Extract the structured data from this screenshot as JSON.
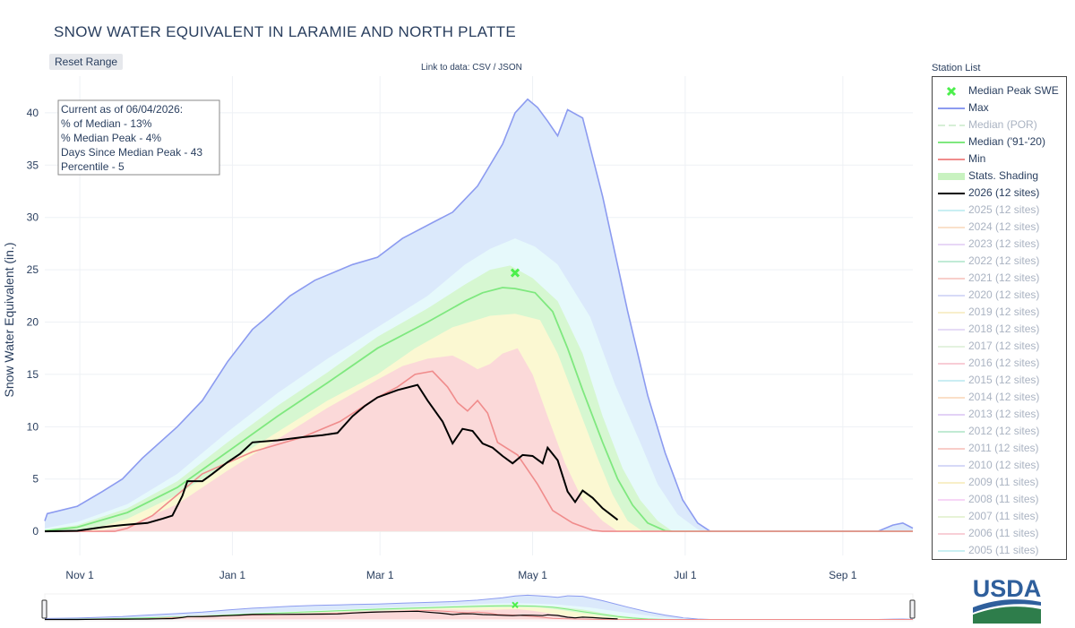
{
  "page": {
    "title": "SNOW WATER EQUIVALENT IN LARAMIE AND NORTH PLATTE",
    "reset_label": "Reset Range",
    "data_link_prefix": "Link to data: ",
    "data_link_csv": "CSV",
    "data_link_sep": " / ",
    "data_link_json": "JSON",
    "legend_title": "Station List",
    "logo_text": "USDA"
  },
  "info_box": {
    "line1": "Current as of 06/04/2026:",
    "line2": "% of Median - 13%",
    "line3": "% Median Peak - 4%",
    "line4": "Days Since Median Peak - 43",
    "line5": "Percentile - 5"
  },
  "legend": [
    {
      "label": "Median Peak SWE",
      "symbol": "x",
      "color": "#4cef4c",
      "active": true
    },
    {
      "label": "Max",
      "symbol": "line",
      "color": "#8c9bf0",
      "active": true
    },
    {
      "label": "Median (POR)",
      "symbol": "dash",
      "color": "#b6e3b6",
      "active": false
    },
    {
      "label": "Median ('91-'20)",
      "symbol": "line",
      "color": "#7fe87f",
      "active": true
    },
    {
      "label": "Min",
      "symbol": "line",
      "color": "#f08c8c",
      "active": true
    },
    {
      "label": "Stats. Shading",
      "symbol": "band",
      "color": "#c8f2c0",
      "active": true
    },
    {
      "label": "2026 (12 sites)",
      "symbol": "line",
      "color": "#000000",
      "active": true
    },
    {
      "label": "2025 (12 sites)",
      "symbol": "line",
      "color": "#9ee3ea",
      "active": false
    },
    {
      "label": "2024 (12 sites)",
      "symbol": "line",
      "color": "#f6c9a2",
      "active": false
    },
    {
      "label": "2023 (12 sites)",
      "symbol": "line",
      "color": "#d7b8f0",
      "active": false
    },
    {
      "label": "2022 (12 sites)",
      "symbol": "line",
      "color": "#8fdbb5",
      "active": false
    },
    {
      "label": "2021 (12 sites)",
      "symbol": "line",
      "color": "#f4a9a0",
      "active": false
    },
    {
      "label": "2020 (12 sites)",
      "symbol": "line",
      "color": "#b7bdf2",
      "active": false
    },
    {
      "label": "2019 (12 sites)",
      "symbol": "line",
      "color": "#f4e3a4",
      "active": false
    },
    {
      "label": "2018 (12 sites)",
      "symbol": "line",
      "color": "#d2c1f0",
      "active": false
    },
    {
      "label": "2017 (12 sites)",
      "symbol": "line",
      "color": "#cfe9c5",
      "active": false
    },
    {
      "label": "2016 (12 sites)",
      "symbol": "line",
      "color": "#f4a5b5",
      "active": false
    },
    {
      "label": "2015 (12 sites)",
      "symbol": "line",
      "color": "#9fdfea",
      "active": false
    },
    {
      "label": "2014 (12 sites)",
      "symbol": "line",
      "color": "#f6c59c",
      "active": false
    },
    {
      "label": "2013 (12 sites)",
      "symbol": "line",
      "color": "#cdaef0",
      "active": false
    },
    {
      "label": "2012 (12 sites)",
      "symbol": "line",
      "color": "#8fdab0",
      "active": false
    },
    {
      "label": "2011 (12 sites)",
      "symbol": "line",
      "color": "#f4a59c",
      "active": false
    },
    {
      "label": "2010 (12 sites)",
      "symbol": "line",
      "color": "#b5bbf2",
      "active": false
    },
    {
      "label": "2009 (11 sites)",
      "symbol": "line",
      "color": "#f3e39c",
      "active": false
    },
    {
      "label": "2008 (11 sites)",
      "symbol": "line",
      "color": "#f2b6ef",
      "active": false
    },
    {
      "label": "2007 (11 sites)",
      "symbol": "line",
      "color": "#d5eab8",
      "active": false
    },
    {
      "label": "2006 (11 sites)",
      "symbol": "line",
      "color": "#f4a9b8",
      "active": false
    },
    {
      "label": "2005 (11 sites)",
      "symbol": "line",
      "color": "#9fe2ea",
      "active": false
    }
  ],
  "chart_data": {
    "type": "area",
    "title": "SNOW WATER EQUIVALENT IN LARAMIE AND NORTH PLATTE",
    "ylabel": "Snow Water Equivalent (in.)",
    "xlabel": "",
    "x_ticks": [
      "Nov 1",
      "Jan 1",
      "Mar 1",
      "May 1",
      "Jul 1",
      "Sep 1"
    ],
    "y_ticks": [
      0,
      5,
      10,
      15,
      20,
      25,
      30,
      35,
      40
    ],
    "x_units": "day of water year (Oct 1 = 0)",
    "x_tick_days": [
      31,
      92,
      151,
      212,
      273,
      336
    ],
    "xlim": [
      17,
      364
    ],
    "ylim": [
      -2.3,
      43.5
    ],
    "grid": true,
    "legend_position": "right",
    "colors": {
      "max_band": "#dbe9fb",
      "max_line": "#8c9bf0",
      "p90_band": "#e6f9fb",
      "p70_band": "#d6f7d1",
      "median_line": "#7fe87f",
      "p30_band": "#fbf8d2",
      "min_band": "#fbd9d9",
      "min_line": "#f08c8c",
      "current_line": "#000000",
      "peak_marker": "#4cef4c"
    },
    "series": [
      {
        "name": "Max",
        "points": [
          [
            17,
            1.0
          ],
          [
            18,
            1.7
          ],
          [
            30,
            2.4
          ],
          [
            40,
            3.8
          ],
          [
            48,
            5.0
          ],
          [
            56,
            7.0
          ],
          [
            70,
            10.0
          ],
          [
            80,
            12.5
          ],
          [
            90,
            16.2
          ],
          [
            100,
            19.3
          ],
          [
            105,
            20.3
          ],
          [
            115,
            22.5
          ],
          [
            125,
            24.0
          ],
          [
            140,
            25.5
          ],
          [
            150,
            26.2
          ],
          [
            160,
            28.0
          ],
          [
            172,
            29.5
          ],
          [
            180,
            30.5
          ],
          [
            190,
            33.0
          ],
          [
            200,
            37.0
          ],
          [
            205,
            40.0
          ],
          [
            210,
            41.3
          ],
          [
            214,
            40.5
          ],
          [
            218,
            39.2
          ],
          [
            222,
            37.8
          ],
          [
            226,
            40.3
          ],
          [
            232,
            39.5
          ],
          [
            240,
            32.0
          ],
          [
            250,
            21.0
          ],
          [
            258,
            13.0
          ],
          [
            265,
            7.5
          ],
          [
            272,
            3.0
          ],
          [
            278,
            0.8
          ],
          [
            283,
            0
          ],
          [
            350,
            0
          ],
          [
            356,
            0.6
          ],
          [
            360,
            0.8
          ],
          [
            364,
            0.3
          ]
        ]
      },
      {
        "name": "Band 90",
        "points": [
          [
            17,
            0.3
          ],
          [
            30,
            0.9
          ],
          [
            50,
            2.6
          ],
          [
            70,
            5.5
          ],
          [
            90,
            9.5
          ],
          [
            110,
            13.2
          ],
          [
            130,
            16.5
          ],
          [
            150,
            19.5
          ],
          [
            170,
            22.5
          ],
          [
            185,
            25.5
          ],
          [
            195,
            27.0
          ],
          [
            205,
            28.0
          ],
          [
            213,
            27.2
          ],
          [
            222,
            25.5
          ],
          [
            235,
            20.5
          ],
          [
            245,
            14.0
          ],
          [
            255,
            8.5
          ],
          [
            262,
            4.5
          ],
          [
            270,
            1.6
          ],
          [
            278,
            0.2
          ],
          [
            280,
            0
          ],
          [
            364,
            0
          ]
        ]
      },
      {
        "name": "Band 70",
        "points": [
          [
            17,
            0.15
          ],
          [
            30,
            0.6
          ],
          [
            50,
            2.2
          ],
          [
            70,
            4.8
          ],
          [
            90,
            8.5
          ],
          [
            110,
            12.0
          ],
          [
            130,
            15.2
          ],
          [
            150,
            18.6
          ],
          [
            170,
            21.3
          ],
          [
            185,
            23.6
          ],
          [
            195,
            25.0
          ],
          [
            203,
            25.4
          ],
          [
            212,
            24.2
          ],
          [
            222,
            22.0
          ],
          [
            232,
            17.0
          ],
          [
            240,
            11.0
          ],
          [
            248,
            6.0
          ],
          [
            255,
            3.0
          ],
          [
            262,
            1.0
          ],
          [
            268,
            0
          ],
          [
            364,
            0
          ]
        ]
      },
      {
        "name": "Median ('91-'20)",
        "points": [
          [
            17,
            0.05
          ],
          [
            30,
            0.4
          ],
          [
            50,
            1.8
          ],
          [
            70,
            4.2
          ],
          [
            90,
            7.6
          ],
          [
            110,
            11.0
          ],
          [
            130,
            14.2
          ],
          [
            150,
            17.5
          ],
          [
            170,
            20.0
          ],
          [
            185,
            22.0
          ],
          [
            192,
            22.8
          ],
          [
            200,
            23.3
          ],
          [
            205,
            23.2
          ],
          [
            213,
            22.8
          ],
          [
            220,
            21.0
          ],
          [
            226,
            17.5
          ],
          [
            232,
            13.5
          ],
          [
            240,
            8.5
          ],
          [
            246,
            5.0
          ],
          [
            252,
            2.5
          ],
          [
            258,
            0.8
          ],
          [
            265,
            0.05
          ],
          [
            268,
            0
          ],
          [
            364,
            0
          ]
        ]
      },
      {
        "name": "Band 30",
        "points": [
          [
            17,
            0
          ],
          [
            30,
            0.1
          ],
          [
            40,
            0.5
          ],
          [
            50,
            1.2
          ],
          [
            70,
            3.5
          ],
          [
            90,
            6.5
          ],
          [
            110,
            9.5
          ],
          [
            130,
            12.5
          ],
          [
            150,
            15.0
          ],
          [
            165,
            17.5
          ],
          [
            180,
            19.5
          ],
          [
            195,
            20.6
          ],
          [
            205,
            20.8
          ],
          [
            215,
            20.2
          ],
          [
            222,
            17.0
          ],
          [
            230,
            12.0
          ],
          [
            238,
            7.0
          ],
          [
            244,
            3.5
          ],
          [
            250,
            1.0
          ],
          [
            256,
            0
          ],
          [
            364,
            0
          ]
        ]
      },
      {
        "name": "Band 10",
        "points": [
          [
            17,
            0
          ],
          [
            40,
            0.1
          ],
          [
            50,
            0.5
          ],
          [
            70,
            2.6
          ],
          [
            90,
            5.8
          ],
          [
            110,
            8.8
          ],
          [
            130,
            11.8
          ],
          [
            150,
            14.5
          ],
          [
            160,
            15.8
          ],
          [
            170,
            16.5
          ],
          [
            180,
            16.8
          ],
          [
            185,
            16.2
          ],
          [
            190,
            15.5
          ],
          [
            195,
            16.0
          ],
          [
            200,
            17.0
          ],
          [
            206,
            17.5
          ],
          [
            212,
            15.0
          ],
          [
            218,
            11.0
          ],
          [
            225,
            6.5
          ],
          [
            232,
            3.0
          ],
          [
            240,
            1.0
          ],
          [
            246,
            0
          ],
          [
            364,
            0
          ]
        ]
      },
      {
        "name": "Min",
        "points": [
          [
            17,
            0
          ],
          [
            45,
            0
          ],
          [
            50,
            0.3
          ],
          [
            60,
            1.5
          ],
          [
            70,
            3.5
          ],
          [
            80,
            5.5
          ],
          [
            100,
            7.6
          ],
          [
            120,
            9.0
          ],
          [
            135,
            10.5
          ],
          [
            150,
            12.8
          ],
          [
            158,
            13.8
          ],
          [
            165,
            15.0
          ],
          [
            172,
            15.3
          ],
          [
            178,
            13.8
          ],
          [
            182,
            12.3
          ],
          [
            186,
            11.5
          ],
          [
            190,
            12.5
          ],
          [
            194,
            11.3
          ],
          [
            198,
            8.5
          ],
          [
            206,
            7.3
          ],
          [
            214,
            4.5
          ],
          [
            220,
            2.0
          ],
          [
            228,
            0.8
          ],
          [
            236,
            0.1
          ],
          [
            240,
            0
          ],
          [
            364,
            0
          ]
        ]
      },
      {
        "name": "2026 (12 sites)",
        "points": [
          [
            17,
            0
          ],
          [
            30,
            0.05
          ],
          [
            40,
            0.4
          ],
          [
            48,
            0.6
          ],
          [
            58,
            0.8
          ],
          [
            64,
            1.2
          ],
          [
            68,
            1.5
          ],
          [
            72,
            3.4
          ],
          [
            74,
            4.8
          ],
          [
            80,
            4.8
          ],
          [
            84,
            5.5
          ],
          [
            90,
            6.6
          ],
          [
            95,
            7.4
          ],
          [
            100,
            8.5
          ],
          [
            110,
            8.7
          ],
          [
            120,
            9.0
          ],
          [
            128,
            9.2
          ],
          [
            134,
            9.4
          ],
          [
            140,
            11.0
          ],
          [
            145,
            12.0
          ],
          [
            150,
            12.8
          ],
          [
            158,
            13.5
          ],
          [
            166,
            14.0
          ],
          [
            170,
            12.5
          ],
          [
            176,
            10.5
          ],
          [
            180,
            8.4
          ],
          [
            184,
            9.8
          ],
          [
            188,
            9.6
          ],
          [
            192,
            8.4
          ],
          [
            196,
            8.0
          ],
          [
            200,
            7.2
          ],
          [
            204,
            6.5
          ],
          [
            208,
            7.3
          ],
          [
            212,
            7.2
          ],
          [
            216,
            6.5
          ],
          [
            218,
            8.0
          ],
          [
            222,
            6.8
          ],
          [
            226,
            3.8
          ],
          [
            229,
            2.8
          ],
          [
            232,
            3.9
          ],
          [
            236,
            3.2
          ],
          [
            240,
            2.2
          ],
          [
            246,
            1.1
          ]
        ]
      },
      {
        "name": "Median Peak SWE",
        "points": [
          [
            205,
            24.7
          ]
        ]
      }
    ]
  }
}
